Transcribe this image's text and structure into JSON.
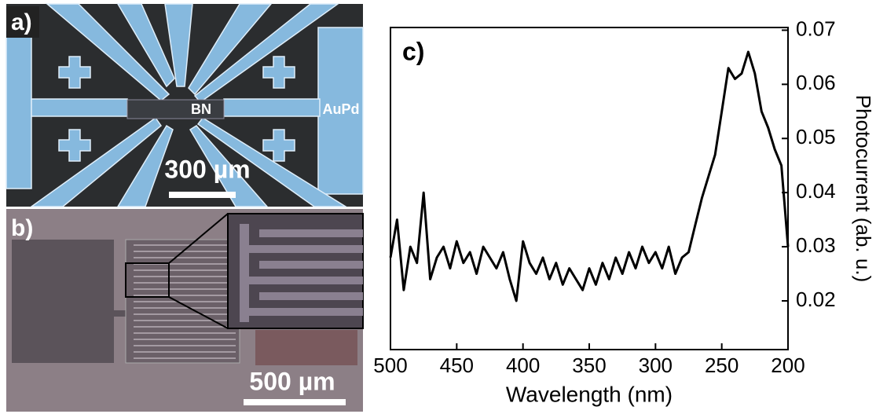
{
  "panels": {
    "a": {
      "label": "a)",
      "bn_label": "BN",
      "metal_label": "AuPd",
      "scale_label": "300 µm"
    },
    "b": {
      "label": "b)",
      "scale_label": "500 µm"
    }
  },
  "chart_data": {
    "type": "line",
    "panel_label": "c)",
    "x_label": "Wavelength (nm)",
    "y_label": "Photocurrent (ab. u.)",
    "x": [
      500,
      495,
      490,
      485,
      480,
      475,
      470,
      465,
      460,
      455,
      450,
      445,
      440,
      435,
      430,
      425,
      420,
      415,
      410,
      405,
      400,
      395,
      390,
      385,
      380,
      375,
      370,
      365,
      360,
      355,
      350,
      345,
      340,
      335,
      330,
      325,
      320,
      315,
      310,
      305,
      300,
      295,
      290,
      285,
      280,
      275,
      270,
      265,
      260,
      255,
      250,
      245,
      240,
      235,
      230,
      225,
      220,
      215,
      210,
      205,
      200
    ],
    "values": [
      0.028,
      0.035,
      0.022,
      0.03,
      0.027,
      0.04,
      0.024,
      0.028,
      0.03,
      0.026,
      0.031,
      0.027,
      0.029,
      0.025,
      0.03,
      0.028,
      0.026,
      0.029,
      0.024,
      0.02,
      0.031,
      0.027,
      0.025,
      0.028,
      0.024,
      0.027,
      0.023,
      0.026,
      0.024,
      0.022,
      0.026,
      0.023,
      0.027,
      0.024,
      0.028,
      0.025,
      0.029,
      0.026,
      0.03,
      0.027,
      0.029,
      0.026,
      0.03,
      0.025,
      0.028,
      0.029,
      0.034,
      0.039,
      0.043,
      0.047,
      0.055,
      0.063,
      0.061,
      0.062,
      0.066,
      0.062,
      0.055,
      0.052,
      0.048,
      0.045,
      0.03
    ],
    "color": "#000000",
    "xlim": [
      500,
      200
    ],
    "xticks": [
      500,
      450,
      400,
      350,
      300,
      250,
      200
    ],
    "ylim": [
      0.011,
      0.0705
    ],
    "yticks": [
      0.02,
      0.03,
      0.04,
      0.05,
      0.06,
      0.07
    ],
    "grid": false
  }
}
